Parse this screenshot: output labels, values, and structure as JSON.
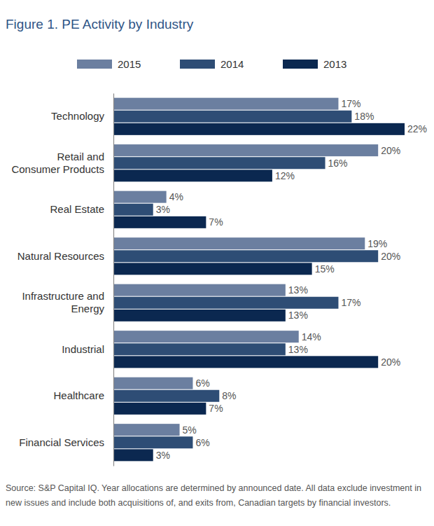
{
  "chart_data": {
    "type": "bar",
    "orientation": "horizontal",
    "title": "Figure 1. PE Activity by Industry",
    "source": "Source: S&P Capital IQ. Year allocations are determined by announced date. All data exclude investment in new issues and include both acquisitions of, and exits from, Canadian targets by financial investors.",
    "categories": [
      "Technology",
      "Retail and Consumer Products",
      "Real Estate",
      "Natural Resources",
      "Infrastructure and Energy",
      "Industrial",
      "Healthcare",
      "Financial Services"
    ],
    "series": [
      {
        "name": "2015",
        "color": "#6b7fa0",
        "values": [
          17,
          20,
          4,
          19,
          13,
          14,
          6,
          5
        ],
        "value_labels": [
          "17%",
          "20%",
          "4%",
          "19%",
          "13%",
          "14%",
          "6%",
          "5%"
        ]
      },
      {
        "name": "2014",
        "color": "#2e4d75",
        "values": [
          18,
          16,
          3,
          20,
          17,
          13,
          8,
          6
        ],
        "value_labels": [
          "18%",
          "16%",
          "3%",
          "20%",
          "17%",
          "13%",
          "8%",
          "6%"
        ]
      },
      {
        "name": "2013",
        "color": "#0b2850",
        "values": [
          22,
          12,
          7,
          15,
          13,
          20,
          7,
          3
        ],
        "value_labels": [
          "22%",
          "12%",
          "7%",
          "15%",
          "13%",
          "20%",
          "7%",
          "3%"
        ]
      }
    ],
    "xlim": [
      0,
      22
    ],
    "tick_labels": "y",
    "data_labels": true,
    "legend": "top",
    "grid": false
  }
}
